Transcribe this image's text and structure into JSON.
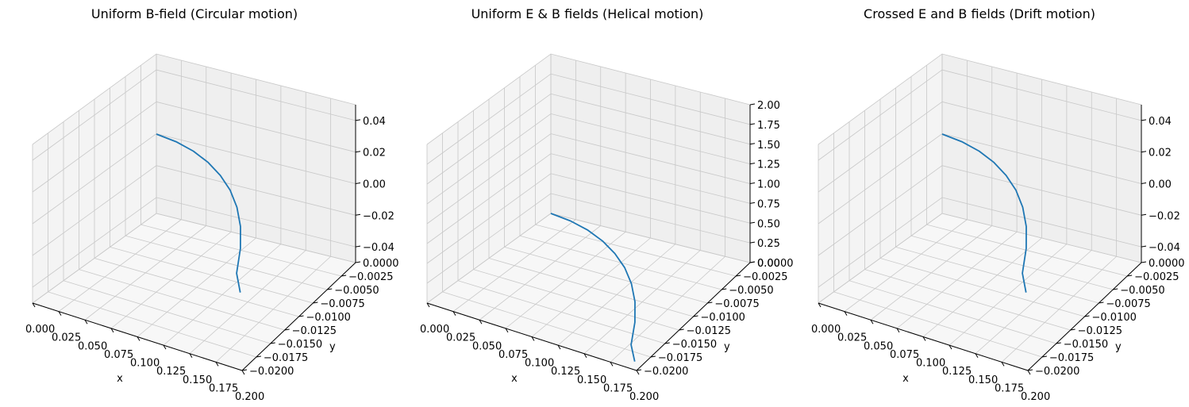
{
  "chart_data": [
    {
      "type": "line3d",
      "title": "Uniform B-field (Circular motion)",
      "xlabel": "x",
      "ylabel": "y",
      "zlabel": "",
      "x_ticks": [
        "0.000",
        "0.025",
        "0.050",
        "0.075",
        "0.100",
        "0.125",
        "0.150",
        "0.175",
        "0.200"
      ],
      "y_ticks": [
        "0.0000",
        "−0.0025",
        "−0.0050",
        "−0.0075",
        "−0.0100",
        "−0.0125",
        "−0.0150",
        "−0.0175",
        "−0.0200"
      ],
      "z_ticks": [
        "0.04",
        "0.02",
        "0.00",
        "−0.02",
        "−0.04"
      ],
      "xlim": [
        0,
        0.2
      ],
      "ylim": [
        -0.02,
        0
      ],
      "zlim": [
        -0.05,
        0.05
      ],
      "series": [
        {
          "color": "#1f77b4",
          "x": [
            0.0,
            0.02,
            0.04,
            0.06,
            0.08,
            0.1,
            0.12,
            0.14,
            0.16,
            0.18,
            0.2
          ],
          "y": [
            0.0,
            -0.0002,
            -0.0008,
            -0.0018,
            -0.0032,
            -0.005,
            -0.0073,
            -0.0101,
            -0.0135,
            -0.0175,
            -0.0203
          ],
          "z": [
            0,
            0,
            0,
            0,
            0,
            0,
            0,
            0,
            0,
            0,
            0
          ]
        }
      ]
    },
    {
      "type": "line3d",
      "title": "Uniform E & B fields (Helical motion)",
      "xlabel": "x",
      "ylabel": "y",
      "zlabel": "",
      "x_ticks": [
        "0.000",
        "0.025",
        "0.050",
        "0.075",
        "0.100",
        "0.125",
        "0.150",
        "0.175",
        "0.200"
      ],
      "y_ticks": [
        "0.0000",
        "−0.0025",
        "−0.0050",
        "−0.0075",
        "−0.0100",
        "−0.0125",
        "−0.0150",
        "−0.0175",
        "−0.0200"
      ],
      "z_ticks": [
        "2.00",
        "1.75",
        "1.50",
        "1.25",
        "1.00",
        "0.75",
        "0.50",
        "0.25",
        "0.00"
      ],
      "xlim": [
        0,
        0.2
      ],
      "ylim": [
        -0.02,
        0
      ],
      "zlim": [
        0,
        2
      ],
      "series": [
        {
          "color": "#1f77b4",
          "x": [
            0.0,
            0.02,
            0.04,
            0.06,
            0.08,
            0.1,
            0.12,
            0.14,
            0.16,
            0.18,
            0.2
          ],
          "y": [
            0.0,
            -0.0002,
            -0.0008,
            -0.0018,
            -0.0032,
            -0.005,
            -0.0073,
            -0.0101,
            -0.0135,
            -0.0175,
            -0.0203
          ],
          "z": [
            0.0,
            0.001,
            0.004,
            0.009,
            0.016,
            0.025,
            0.037,
            0.052,
            0.072,
            0.098,
            0.13
          ]
        }
      ]
    },
    {
      "type": "line3d",
      "title": "Crossed E and B fields (Drift motion)",
      "xlabel": "x",
      "ylabel": "y",
      "zlabel": "",
      "x_ticks": [
        "0.000",
        "0.025",
        "0.050",
        "0.075",
        "0.100",
        "0.125",
        "0.150",
        "0.175",
        "0.200"
      ],
      "y_ticks": [
        "0.0000",
        "−0.0025",
        "−0.0050",
        "−0.0075",
        "−0.0100",
        "−0.0125",
        "−0.0150",
        "−0.0175",
        "−0.0200"
      ],
      "z_ticks": [
        "0.04",
        "0.02",
        "0.00",
        "−0.02",
        "−0.04"
      ],
      "xlim": [
        0,
        0.2
      ],
      "ylim": [
        -0.02,
        0
      ],
      "zlim": [
        -0.05,
        0.05
      ],
      "series": [
        {
          "color": "#1f77b4",
          "x": [
            0.0,
            0.02,
            0.04,
            0.06,
            0.08,
            0.1,
            0.12,
            0.14,
            0.16,
            0.18,
            0.2
          ],
          "y": [
            0.0,
            -0.0002,
            -0.0008,
            -0.0018,
            -0.0032,
            -0.005,
            -0.0073,
            -0.0101,
            -0.0135,
            -0.0175,
            -0.0203
          ],
          "z": [
            0,
            0,
            0,
            0,
            0,
            0,
            0,
            0,
            0,
            0,
            0
          ]
        }
      ]
    }
  ]
}
